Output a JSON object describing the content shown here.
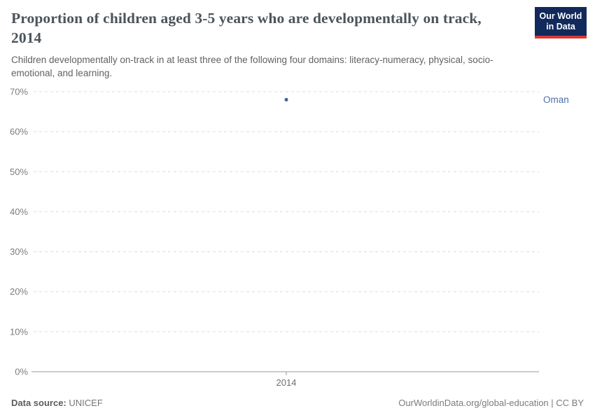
{
  "header": {
    "title": "Proportion of children aged 3-5 years who are developmentally on track, 2014",
    "subtitle": "Children developmentally on-track in at least three of the following four domains: literacy-numeracy, physical, socio-emotional, and learning."
  },
  "logo": {
    "line1": "Our World",
    "line2": "in Data",
    "bg_color": "#12295b",
    "bar_color": "#d8382f"
  },
  "chart_data": {
    "type": "scatter",
    "title": "Proportion of children aged 3-5 years who are developmentally on track, 2014",
    "x": [
      2014
    ],
    "series": [
      {
        "name": "Oman",
        "values": [
          68
        ],
        "color": "#3d63a3",
        "label_color": "#4f6fa5"
      }
    ],
    "unit": "%",
    "ylim": [
      0,
      70
    ],
    "yticks": [
      0,
      10,
      20,
      30,
      40,
      50,
      60,
      70
    ],
    "ytick_suffix": "%",
    "xticks": [
      "2014"
    ],
    "grid": true,
    "legend": "entity-label-right",
    "grid_color": "#dcdcdc",
    "axis_color": "#9a9a9a",
    "tick_label_color": "#7d7d7d",
    "xtick_label_color": "#6e6e6e"
  },
  "footer": {
    "source_label": "Data source:",
    "source_value": "UNICEF",
    "attribution": "OurWorldinData.org/global-education | CC BY"
  }
}
